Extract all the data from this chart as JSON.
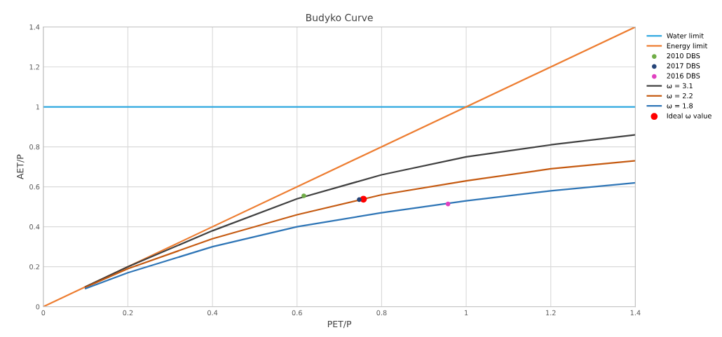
{
  "chart_data": {
    "type": "line",
    "title": "Budyko Curve",
    "xlabel": "PET/P",
    "ylabel": "AET/P",
    "xlim": [
      0,
      1.4
    ],
    "ylim": [
      0,
      1.4
    ],
    "xticks": [
      0,
      0.2,
      0.4,
      0.6,
      0.8,
      1,
      1.2,
      1.4
    ],
    "yticks": [
      0,
      0.2,
      0.4,
      0.6,
      0.8,
      1,
      1.2,
      1.4
    ],
    "grid": true,
    "legend": "right",
    "series": [
      {
        "name": "Water limit",
        "color": "#2fa8e0",
        "x": [
          0,
          1.4
        ],
        "values": [
          1,
          1
        ]
      },
      {
        "name": "Energy limit",
        "color": "#ed7d31",
        "x": [
          0,
          1.4
        ],
        "values": [
          0,
          1.4
        ]
      },
      {
        "name": "2010 DBS",
        "type": "scatter",
        "marker": "circle",
        "color": "#70ad47",
        "x": [
          0.616
        ],
        "values": [
          0.555
        ]
      },
      {
        "name": "2017 DBS",
        "type": "scatter",
        "marker": "circle",
        "color": "#264478",
        "x": [
          0.747
        ],
        "values": [
          0.536
        ]
      },
      {
        "name": "2016 DBS",
        "type": "scatter",
        "marker": "circle",
        "color": "#e040c0",
        "x": [
          0.957
        ],
        "values": [
          0.514
        ]
      },
      {
        "name": "ω = 3.1",
        "color": "#404040",
        "x": [
          0.1,
          0.2,
          0.4,
          0.6,
          0.8,
          1.0,
          1.2,
          1.4
        ],
        "values": [
          0.1,
          0.2,
          0.38,
          0.54,
          0.66,
          0.75,
          0.81,
          0.86
        ]
      },
      {
        "name": "ω = 2.2",
        "color": "#c55a11",
        "x": [
          0.1,
          0.2,
          0.4,
          0.6,
          0.8,
          1.0,
          1.2,
          1.4
        ],
        "values": [
          0.097,
          0.19,
          0.34,
          0.46,
          0.56,
          0.63,
          0.69,
          0.73
        ]
      },
      {
        "name": "ω = 1.8",
        "color": "#2e75b6",
        "x": [
          0.1,
          0.2,
          0.4,
          0.6,
          0.8,
          1.0,
          1.2,
          1.4
        ],
        "values": [
          0.091,
          0.17,
          0.3,
          0.4,
          0.47,
          0.53,
          0.58,
          0.62
        ]
      },
      {
        "name": "Ideal ω value",
        "type": "scatter",
        "marker": "circle",
        "color": "#ff0000",
        "x": [
          0.757
        ],
        "values": [
          0.538
        ]
      }
    ]
  }
}
